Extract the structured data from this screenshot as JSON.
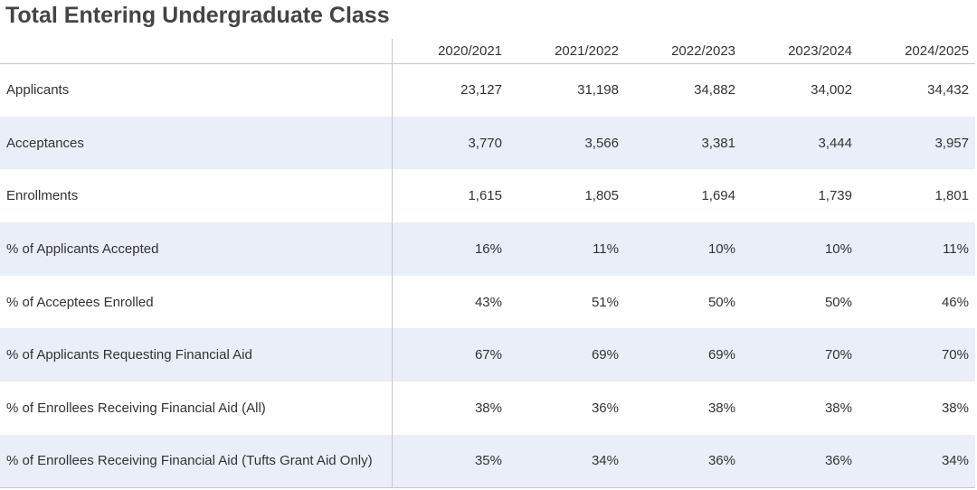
{
  "title": "Total Entering Undergraduate Class",
  "table": {
    "headers": [
      "2020/2021",
      "2021/2022",
      "2022/2023",
      "2023/2024",
      "2024/2025"
    ],
    "rows": [
      {
        "label": "Applicants",
        "values": [
          "23,127",
          "31,198",
          "34,882",
          "34,002",
          "34,432"
        ]
      },
      {
        "label": "Acceptances",
        "values": [
          "3,770",
          "3,566",
          "3,381",
          "3,444",
          "3,957"
        ]
      },
      {
        "label": "Enrollments",
        "values": [
          "1,615",
          "1,805",
          "1,694",
          "1,739",
          "1,801"
        ]
      },
      {
        "label": "% of Applicants Accepted",
        "values": [
          "16%",
          "11%",
          "10%",
          "10%",
          "11%"
        ]
      },
      {
        "label": "% of Acceptees Enrolled",
        "values": [
          "43%",
          "51%",
          "50%",
          "50%",
          "46%"
        ]
      },
      {
        "label": "% of Applicants Requesting Financial Aid",
        "values": [
          "67%",
          "69%",
          "69%",
          "70%",
          "70%"
        ]
      },
      {
        "label": "% of Enrollees Receiving Financial Aid (All)",
        "values": [
          "38%",
          "36%",
          "38%",
          "38%",
          "38%"
        ]
      },
      {
        "label": "% of Enrollees Receiving Financial Aid (Tufts Grant Aid Only)",
        "values": [
          "35%",
          "34%",
          "36%",
          "36%",
          "34%"
        ]
      }
    ]
  },
  "colors": {
    "alt_row": "#e9eef9",
    "title": "#444444",
    "border": "#c8c8c8"
  }
}
